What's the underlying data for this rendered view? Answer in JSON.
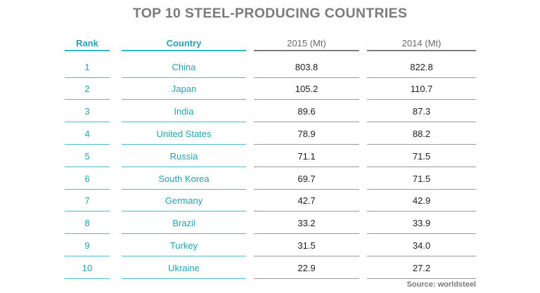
{
  "chart_data": {
    "type": "table",
    "title": "TOP 10 STEEL-PRODUCING COUNTRIES",
    "columns": [
      "Rank",
      "Country",
      "2015 (Mt)",
      "2014 (Mt)"
    ],
    "rows": [
      {
        "rank": "1",
        "country": "China",
        "v2015": "803.8",
        "v2014": "822.8"
      },
      {
        "rank": "2",
        "country": "Japan",
        "v2015": "105.2",
        "v2014": "110.7"
      },
      {
        "rank": "3",
        "country": "India",
        "v2015": "89.6",
        "v2014": "87.3"
      },
      {
        "rank": "4",
        "country": "United States",
        "v2015": "78.9",
        "v2014": "88.2"
      },
      {
        "rank": "5",
        "country": "Russia",
        "v2015": "71.1",
        "v2014": "71.5"
      },
      {
        "rank": "6",
        "country": "South Korea",
        "v2015": "69.7",
        "v2014": "71.5"
      },
      {
        "rank": "7",
        "country": "Germany",
        "v2015": "42.7",
        "v2014": "42.9"
      },
      {
        "rank": "8",
        "country": "Brazil",
        "v2015": "33.2",
        "v2014": "33.9"
      },
      {
        "rank": "9",
        "country": "Turkey",
        "v2015": "31.5",
        "v2014": "34.0"
      },
      {
        "rank": "10",
        "country": "Ukraine",
        "v2015": "22.9",
        "v2014": "27.2"
      }
    ],
    "source": "Source: worldsteel"
  },
  "colors": {
    "title": "#7a7a7a",
    "accent_teal": "#22a2b2",
    "value_text": "#1e1e1e",
    "grey_rule": "#7c7c7c"
  }
}
